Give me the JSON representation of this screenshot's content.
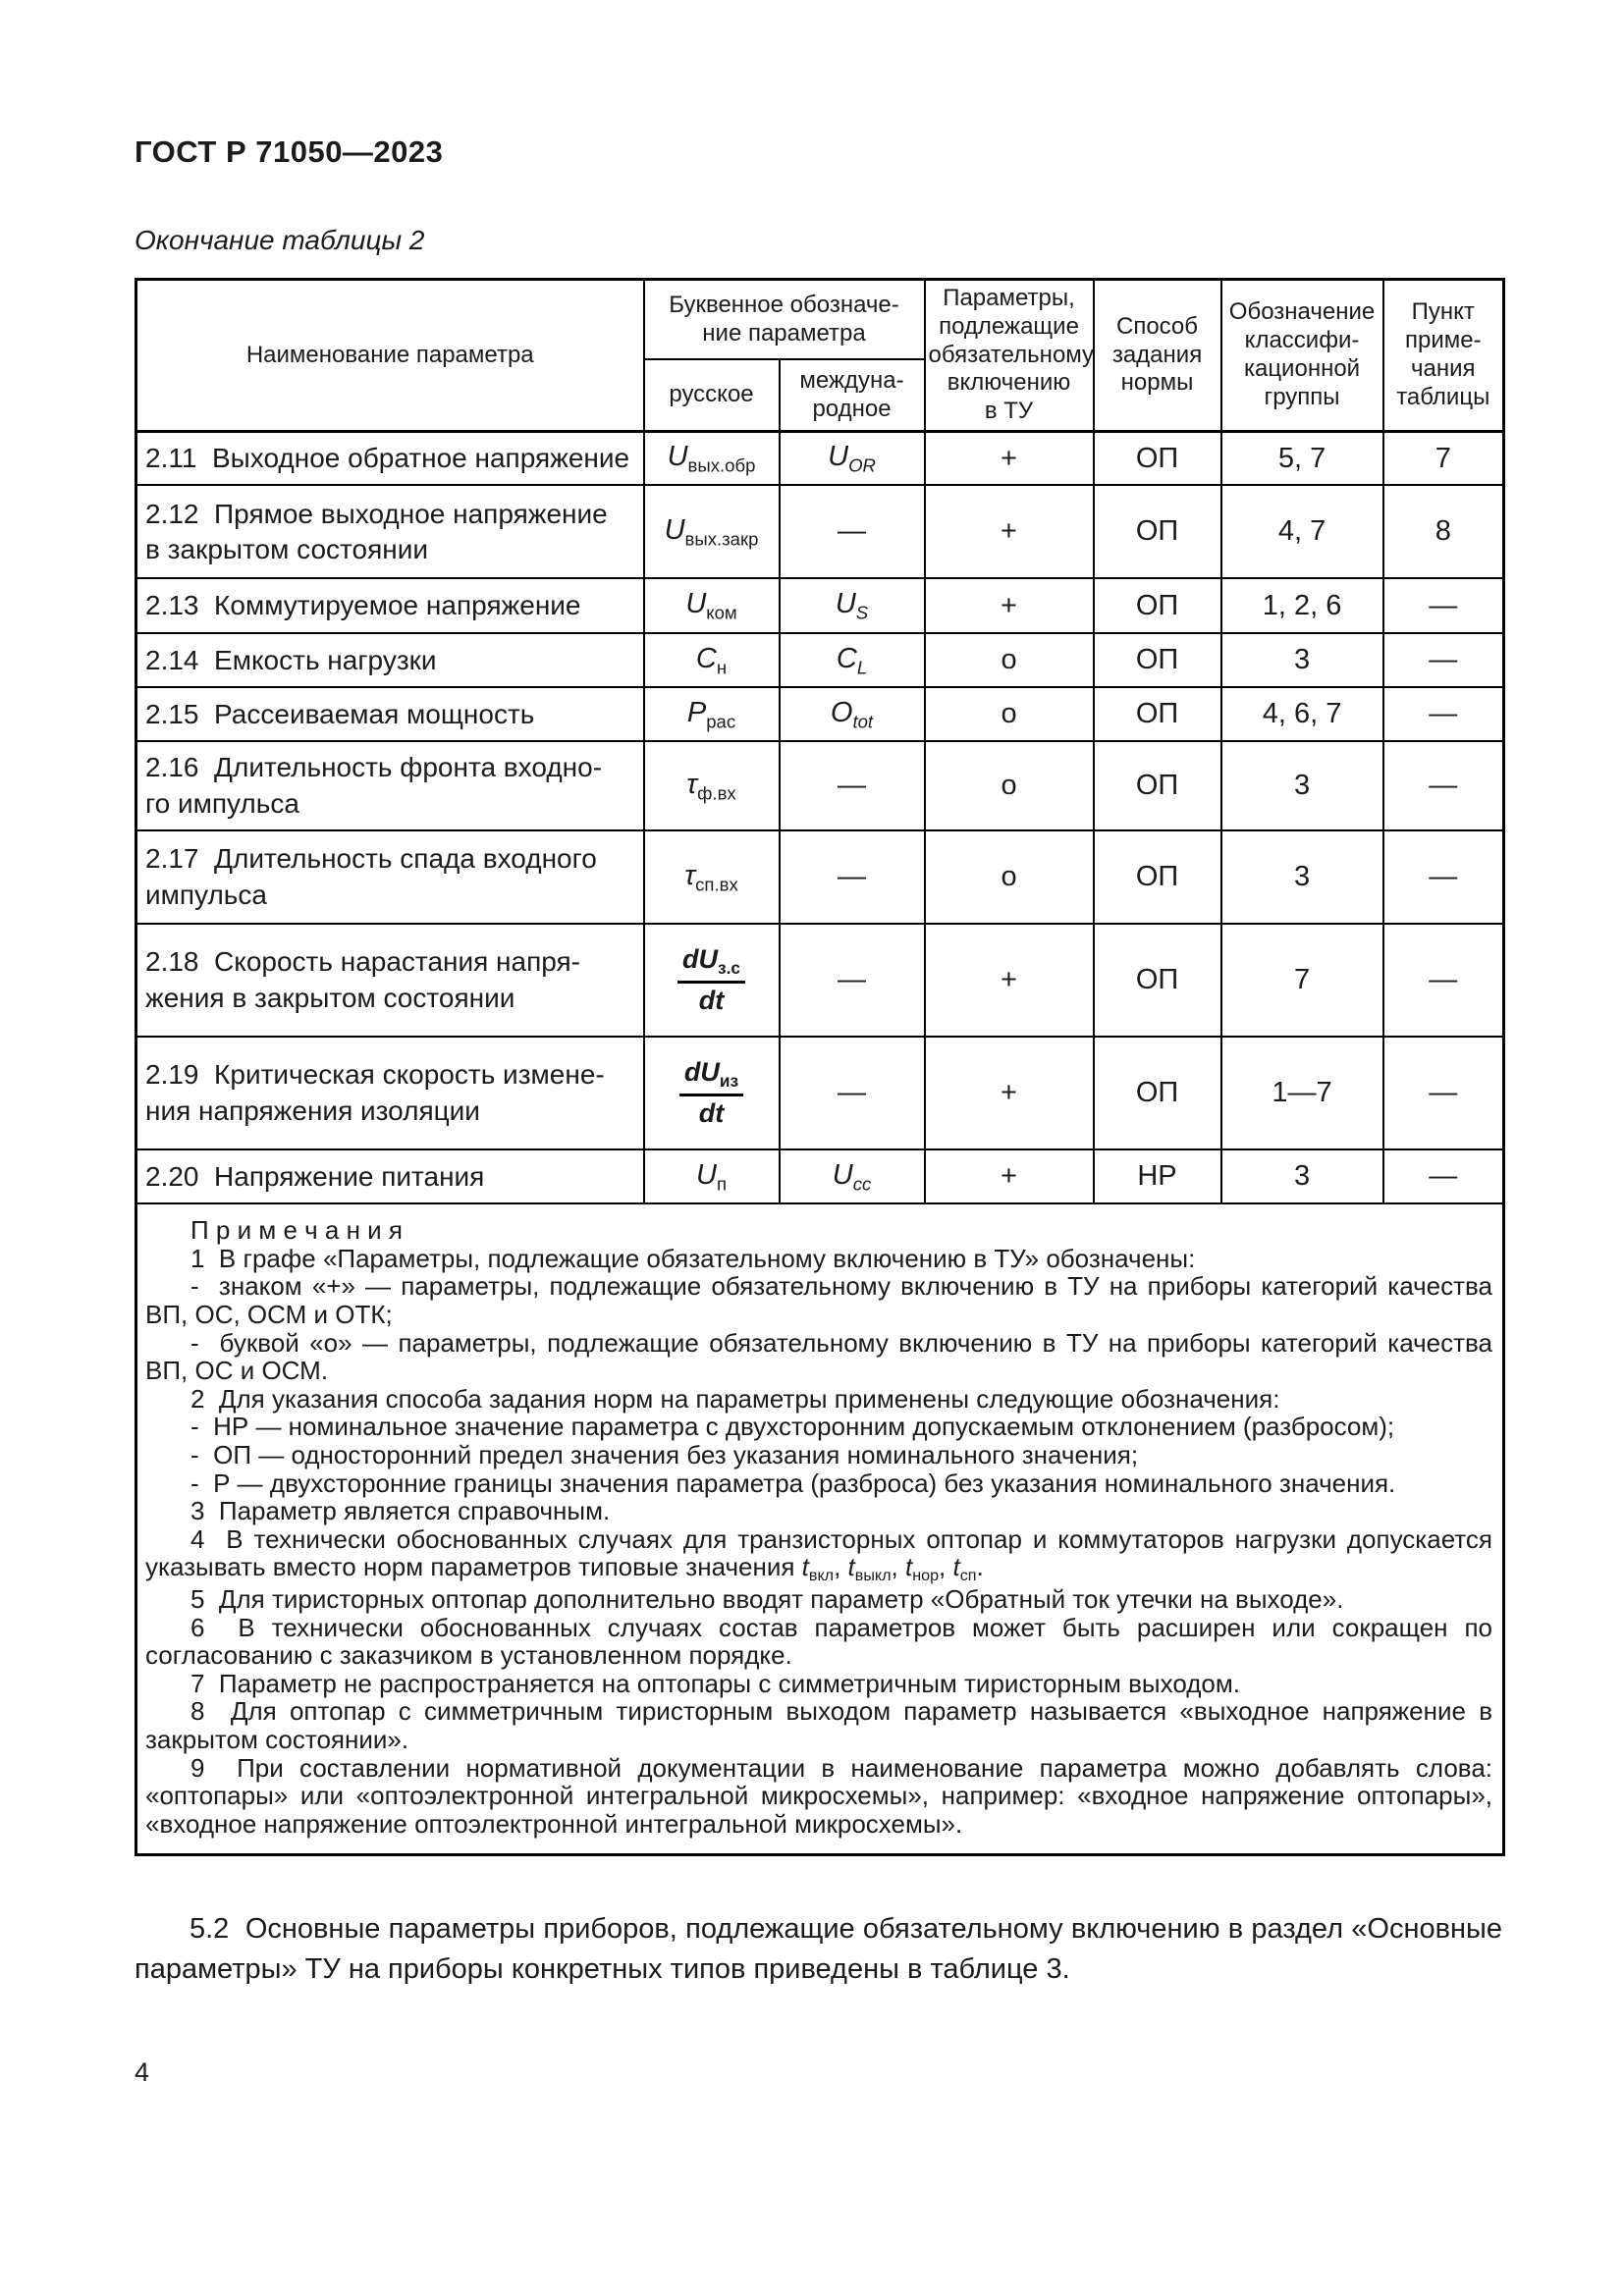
{
  "page": {
    "header": "ГОСТ Р 71050—2023",
    "table_caption": "Окончание таблицы 2",
    "paragraph_5_2": "5.2  Основные параметры приборов, подлежащие обязательному включению в раздел «Основные параметры» ТУ на приборы конкретных типов приведены в таблице 3.",
    "page_number": "4"
  },
  "table": {
    "headers": {
      "name": "Наименование параметра",
      "letter_designation": "Буквенное обозначе-\nние параметра",
      "russian": "русское",
      "international": "междуна-\nродное",
      "mandatory": "Параметры,\nподлежащие\nобязательному\nвключению\nв ТУ",
      "method": "Способ\nзадания\nнормы",
      "group": "Обозначение\nклассифи-\nкационной\nгруппы",
      "note": "Пункт\nприме-\nчания\nтаблицы"
    },
    "rows": [
      {
        "h": 52,
        "name": "2.11  Выходное обратное напряжение",
        "rus": {
          "base": "U",
          "sub": "вых.обр"
        },
        "int": {
          "base": "U",
          "sub": "OR",
          "it": true
        },
        "incl": "+",
        "method": "ОП",
        "group": "5, 7",
        "note": "7"
      },
      {
        "h": 95,
        "name": "2.12  Прямое выходное напряжение\nв закрытом состоянии",
        "rus": {
          "base": "U",
          "sub": "вых.закр"
        },
        "int": {
          "dash": true
        },
        "incl": "+",
        "method": "ОП",
        "group": "4, 7",
        "note": "8"
      },
      {
        "h": 56,
        "name": "2.13  Коммутируемое напряжение",
        "rus": {
          "base": "U",
          "sub": "ком"
        },
        "int": {
          "base": "U",
          "sub": "S",
          "it": true
        },
        "incl": "+",
        "method": "ОП",
        "group": "1, 2, 6",
        "note": "—"
      },
      {
        "h": 55,
        "name": "2.14  Емкость нагрузки",
        "rus": {
          "base": "C",
          "sub": "н"
        },
        "int": {
          "base": "C",
          "sub": "L",
          "it": true
        },
        "incl": "о",
        "method": "ОП",
        "group": "3",
        "note": "—"
      },
      {
        "h": 55,
        "name": "2.15  Рассеиваемая мощность",
        "rus": {
          "base": "P",
          "sub": "рас"
        },
        "int": {
          "base": "O",
          "sub": "tot",
          "it": true
        },
        "incl": "о",
        "method": "ОП",
        "group": "4, 6, 7",
        "note": "—"
      },
      {
        "h": 90,
        "name": "2.16  Длительность фронта входно-\nго импульса",
        "rus": {
          "base": "τ",
          "sub": "ф.вх"
        },
        "int": {
          "dash": true
        },
        "incl": "о",
        "method": "ОП",
        "group": "3",
        "note": "—"
      },
      {
        "h": 95,
        "name": "2.17  Длительность спада входного\nимпульса",
        "rus": {
          "base": "τ",
          "sub": "сп.вх"
        },
        "int": {
          "dash": true
        },
        "incl": "о",
        "method": "ОП",
        "group": "3",
        "note": "—"
      },
      {
        "h": 115,
        "name": "2.18  Скорость нарастания напря-\nжения в закрытом состоянии",
        "rus": {
          "frac": {
            "numBase": "dU",
            "numSub": "з.с",
            "den": "dt"
          }
        },
        "int": {
          "dash": true
        },
        "incl": "+",
        "method": "ОП",
        "group": "7",
        "note": "—"
      },
      {
        "h": 115,
        "name": "2.19  Критическая скорость измене-\nния напряжения изоляции",
        "rus": {
          "frac": {
            "numBase": "dU",
            "numSub": "из",
            "den": "dt"
          }
        },
        "int": {
          "dash": true
        },
        "incl": "+",
        "method": "ОП",
        "group": "1—7",
        "note": "—"
      },
      {
        "h": 55,
        "name": "2.20  Напряжение питания",
        "rus": {
          "base": "U",
          "sub": "п"
        },
        "int": {
          "base": "U",
          "sub": "cc",
          "it": true
        },
        "incl": "+",
        "method": "НР",
        "group": "3",
        "note": "—"
      }
    ],
    "notes": [
      {
        "style": "head",
        "text": "П р и м е ч а н и я"
      },
      {
        "text": "1  В графе «Параметры, подлежащие обязательному включению в ТУ» обозначены:"
      },
      {
        "text": "-  знаком «+» — параметры, подлежащие обязательному включению в ТУ на приборы категорий качества ВП, ОС, ОСМ и ОТК;"
      },
      {
        "text": "-  буквой «о» — параметры, подлежащие обязательному включению в ТУ на приборы категорий качества ВП, ОС и ОСМ."
      },
      {
        "text": "2  Для указания способа задания норм на параметры применены следующие обозначения:"
      },
      {
        "text": "-  НР — номинальное значение параметра с двухсторонним допускаемым отклонением (разбросом);"
      },
      {
        "text": "-  ОП — односторонний предел значения без указания номинального значения;"
      },
      {
        "text": "-  Р — двухсторонние границы значения параметра (разброса) без указания номинального значения."
      },
      {
        "text": "3  Параметр является справочным."
      },
      {
        "segments": [
          {
            "t": "4  В технически обоснованных случаях для транзисторных оптопар и коммутаторов нагрузки допускается указывать вместо норм параметров типовые значения "
          },
          {
            "v": "t",
            "s": "вкл"
          },
          {
            "t": ", "
          },
          {
            "v": "t",
            "s": "выкл"
          },
          {
            "t": ", "
          },
          {
            "v": "t",
            "s": "нор"
          },
          {
            "t": ", "
          },
          {
            "v": "t",
            "s": "сп"
          },
          {
            "t": "."
          }
        ]
      },
      {
        "text": "5  Для тиристорных оптопар дополнительно вводят параметр «Обратный ток утечки на выходе»."
      },
      {
        "text": "6  В технически обоснованных случаях состав параметров может быть расширен или сокращен по согласованию с заказчиком в установленном порядке."
      },
      {
        "text": "7  Параметр не распространяется на оптопары с симметричным тиристорным выходом."
      },
      {
        "text": "8  Для оптопар с симметричным тиристорным выходом параметр называется «выходное напряжение в закрытом состоянии»."
      },
      {
        "text": "9  При составлении нормативной документации в наименование параметра можно добавлять слова: «оптопары» или «оптоэлектронной интегральной микросхемы», например: «входное напряжение оптопары», «входное напряжение оптоэлектронной интегральной микросхемы»."
      }
    ]
  }
}
